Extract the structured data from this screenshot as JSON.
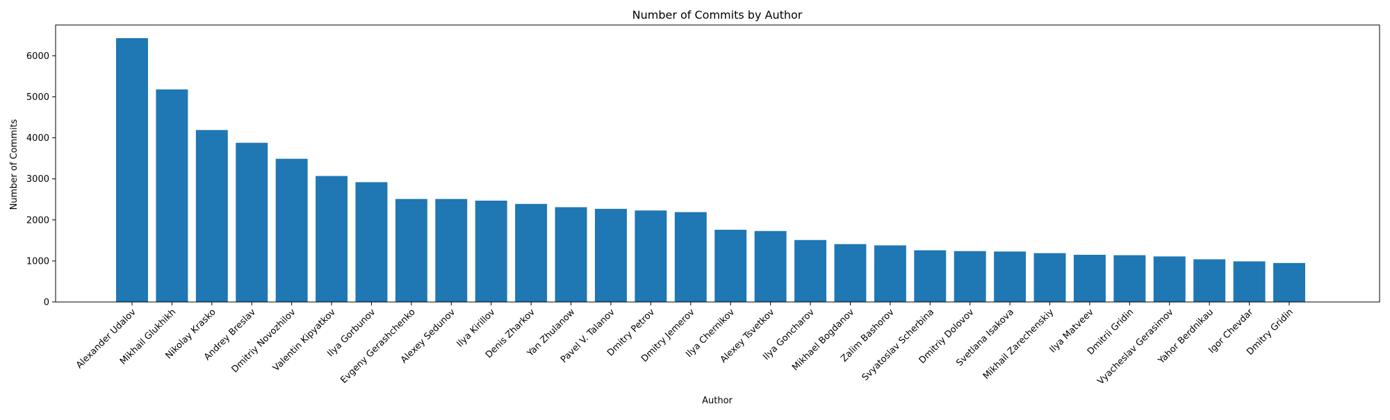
{
  "chart_data": {
    "type": "bar",
    "title": "Number of Commits by Author",
    "xlabel": "Author",
    "ylabel": "Number of Commits",
    "ylim": [
      0,
      6750
    ],
    "yticks": [
      0,
      1000,
      2000,
      3000,
      4000,
      5000,
      6000
    ],
    "grid": false,
    "legend": "none",
    "bar_color": "#1f77b4",
    "categories": [
      "Alexander Udalov",
      "Mikhail Glukhikh",
      "Nikolay Krasko",
      "Andrey Breslav",
      "Dmitriy Novozhilov",
      "Valentin Kipyatkov",
      "Ilya Gorbunov",
      "Evgeny Gerashchenko",
      "Alexey Sedunov",
      "Ilya Kirillov",
      "Denis Zharkov",
      "Yan Zhulanow",
      "Pavel V. Talanov",
      "Dmitry Petrov",
      "Dmitry Jemerov",
      "Ilya Chernikov",
      "Alexey Tsvetkov",
      "Ilya Goncharov",
      "Mikhael Bogdanov",
      "Zalim Bashorov",
      "Svyatoslav Scherbina",
      "Dmitriy Dolovov",
      "Svetlana Isakova",
      "Mikhail Zarechenskiy",
      "Ilya Matveev",
      "Dmitrii Gridin",
      "Vyacheslav Gerasimov",
      "Yahor Berdnikau",
      "Igor Chevdar",
      "Dmitry Gridin"
    ],
    "values": [
      6430,
      5180,
      4190,
      3880,
      3490,
      3070,
      2920,
      2510,
      2510,
      2470,
      2390,
      2310,
      2270,
      2230,
      2190,
      1760,
      1730,
      1510,
      1410,
      1380,
      1260,
      1240,
      1230,
      1190,
      1150,
      1140,
      1110,
      1040,
      990,
      950
    ]
  }
}
